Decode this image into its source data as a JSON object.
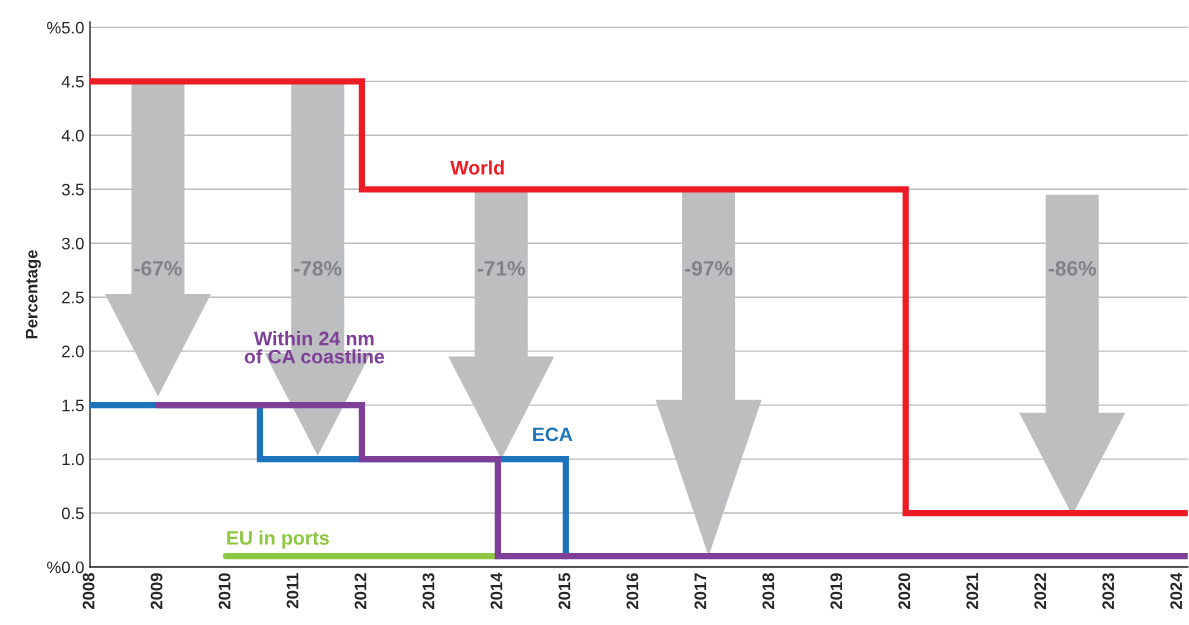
{
  "chart_data": {
    "type": "step",
    "ylabel": "Percentage",
    "xlim": [
      2008,
      2024.15
    ],
    "xticks": [
      2008,
      2009,
      2010,
      2011,
      2012,
      2013,
      2014,
      2015,
      2016,
      2017,
      2018,
      2019,
      2020,
      2021,
      2022,
      2023,
      2024
    ],
    "ylim": [
      0,
      5.05
    ],
    "yticks": [
      {
        "value": 0,
        "label": "%0.0"
      },
      {
        "value": 0.5,
        "label": "0.5"
      },
      {
        "value": 1.0,
        "label": "1.0"
      },
      {
        "value": 1.5,
        "label": "1.5"
      },
      {
        "value": 2.0,
        "label": "2.0"
      },
      {
        "value": 2.5,
        "label": "2.5"
      },
      {
        "value": 3.0,
        "label": "3.0"
      },
      {
        "value": 3.5,
        "label": "3.5"
      },
      {
        "value": 4.0,
        "label": "4.0"
      },
      {
        "value": 4.5,
        "label": "4.5"
      },
      {
        "value": 5.0,
        "label": "%5.0"
      }
    ],
    "grid": "y",
    "legend": false,
    "series": [
      {
        "name": "World",
        "color": "#ed1c24",
        "x": [
          2008,
          2012,
          2020,
          2024.15
        ],
        "values": [
          4.5,
          3.5,
          0.5,
          0.5
        ]
      },
      {
        "name": "Within 24 nm\nof CA coastline",
        "color": "#7f3f98",
        "x": [
          2009,
          2012,
          2014,
          2024.15
        ],
        "values": [
          1.5,
          1.0,
          0.1,
          0.1
        ]
      },
      {
        "name": "ECA",
        "color": "#1c75bc",
        "x": [
          2008,
          2010.5,
          2015
        ],
        "values": [
          1.5,
          1.0,
          0.1
        ]
      },
      {
        "name": "EU in ports",
        "color": "#8dc63f",
        "x": [
          2010,
          2014
        ],
        "values": [
          0.1,
          0.1
        ]
      }
    ],
    "annotations": [
      "-67%",
      "-78%",
      "-71%",
      "-97%",
      "-86%"
    ]
  }
}
